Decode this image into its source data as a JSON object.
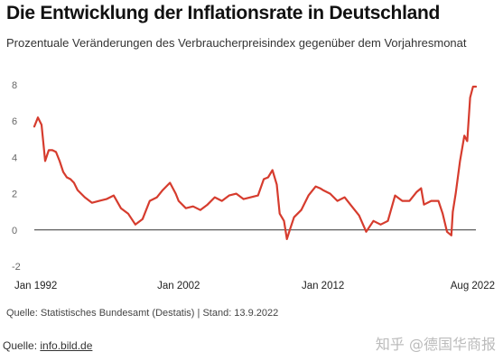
{
  "header": {
    "title": "Die Entwicklung der Inflationsrate in Deutschland",
    "subtitle": "Prozentuale Veränderungen des Verbraucherpreisindex gegenüber dem Vorjahresmonat"
  },
  "footer": {
    "source_line": "Quelle: Statistisches Bundesamt (Destatis) | Stand: 13.9.2022",
    "quelle_prefix": "Quelle: ",
    "quelle_link": "info.bild.de",
    "watermark": "知乎 @德国华商报"
  },
  "colors": {
    "line": "#d63c2e",
    "zero_line": "#333333",
    "grid": "#e6e6e6"
  },
  "chart_data": {
    "type": "line",
    "title": "Die Entwicklung der Inflationsrate in Deutschland",
    "subtitle": "Prozentuale Veränderungen des Verbraucherpreisindex gegenüber dem Vorjahresmonat",
    "xlabel": "",
    "ylabel": "",
    "ylim": [
      -2,
      8
    ],
    "yticks": [
      "8",
      "6",
      "4",
      "2",
      "0",
      "-2"
    ],
    "xticks": [
      "Jan 1992",
      "Jan 2002",
      "Jan 2012",
      "Aug 2022"
    ],
    "grid": false,
    "series": [
      {
        "x": [
          1992.0,
          1992.25,
          1992.5,
          1992.75,
          1993.0,
          1993.25,
          1993.5,
          1993.75,
          1994.0,
          1994.25,
          1994.5,
          1994.75,
          1995.0,
          1995.5,
          1996.0,
          1996.5,
          1997.0,
          1997.5,
          1998.0,
          1998.5,
          1999.0,
          1999.5,
          2000.0,
          2000.5,
          2000.9,
          2001.4,
          2001.8,
          2002.0,
          2002.5,
          2003.0,
          2003.5,
          2004.0,
          2004.5,
          2005.0,
          2005.5,
          2006.0,
          2006.5,
          2007.0,
          2007.5,
          2007.9,
          2008.2,
          2008.5,
          2008.8,
          2009.0,
          2009.3,
          2009.5,
          2009.7,
          2010.0,
          2010.5,
          2011.0,
          2011.5,
          2011.8,
          2012.0,
          2012.5,
          2013.0,
          2013.5,
          2014.0,
          2014.5,
          2015.0,
          2015.5,
          2016.0,
          2016.5,
          2017.0,
          2017.5,
          2018.0,
          2018.5,
          2018.8,
          2019.0,
          2019.5,
          2020.0,
          2020.3,
          2020.6,
          2020.9,
          2021.0,
          2021.2,
          2021.5,
          2021.8,
          2022.0,
          2022.2,
          2022.4,
          2022.6
        ],
        "values": [
          5.7,
          6.2,
          5.8,
          3.8,
          4.4,
          4.4,
          4.3,
          3.8,
          3.2,
          2.9,
          2.8,
          2.6,
          2.2,
          1.8,
          1.5,
          1.6,
          1.7,
          1.9,
          1.2,
          0.9,
          0.3,
          0.6,
          1.6,
          1.8,
          2.2,
          2.6,
          2.0,
          1.6,
          1.2,
          1.3,
          1.1,
          1.4,
          1.8,
          1.6,
          1.9,
          2.0,
          1.7,
          1.8,
          1.9,
          2.8,
          2.9,
          3.3,
          2.5,
          0.9,
          0.5,
          -0.5,
          0.0,
          0.7,
          1.1,
          1.9,
          2.4,
          2.3,
          2.2,
          2.0,
          1.6,
          1.8,
          1.3,
          0.8,
          -0.1,
          0.5,
          0.3,
          0.5,
          1.9,
          1.6,
          1.6,
          2.1,
          2.3,
          1.4,
          1.6,
          1.6,
          0.9,
          -0.1,
          -0.3,
          1.0,
          2.0,
          3.8,
          5.2,
          4.9,
          7.3,
          7.9,
          7.9
        ]
      }
    ]
  }
}
